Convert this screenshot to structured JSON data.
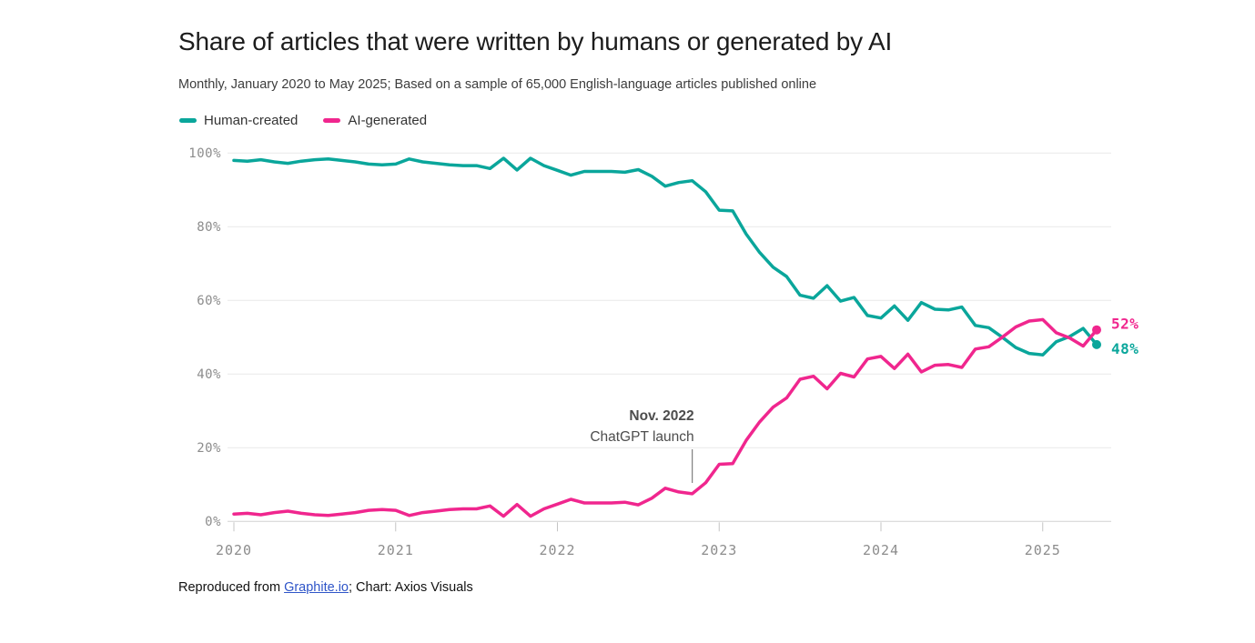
{
  "header": {
    "title": "Share of articles that were written by humans or generated by AI",
    "subtitle": "Monthly, January 2020 to May 2025; Based on a sample of 65,000 English-language articles published online"
  },
  "legend": {
    "items": [
      {
        "label": "Human-created",
        "color": "#0aa69b"
      },
      {
        "label": "AI-generated",
        "color": "#f0268e"
      }
    ]
  },
  "chart_data": {
    "type": "line",
    "title": "Share of articles that were written by humans or generated by AI",
    "x_range": {
      "start": "2020-01",
      "end": "2025-05",
      "interval": "monthly",
      "points": 65
    },
    "x_tick_labels": [
      "2020",
      "2021",
      "2022",
      "2023",
      "2024",
      "2025"
    ],
    "y_tick_labels": [
      "0%",
      "20%",
      "40%",
      "60%",
      "80%",
      "100%"
    ],
    "ylim": [
      0,
      100
    ],
    "grid": "horizontal-only",
    "legend_position": "top-left",
    "series": [
      {
        "name": "Human-created",
        "color": "#0aa69b",
        "end_label": "48%",
        "values": [
          98,
          97.8,
          98.2,
          97.6,
          97.2,
          97.8,
          98.2,
          98.4,
          98,
          97.6,
          97,
          96.8,
          97,
          98.4,
          97.6,
          97.2,
          96.8,
          96.6,
          96.6,
          95.8,
          98.6,
          95.4,
          98.6,
          96.6,
          95.3,
          94,
          95,
          95,
          95,
          94.8,
          95.5,
          93.7,
          91,
          92,
          92.5,
          89.5,
          84.5,
          84.3,
          78,
          73,
          69,
          66.5,
          61.4,
          60.6,
          64,
          59.8,
          60.8,
          55.9,
          55.2,
          58.5,
          54.6,
          59.4,
          57.6,
          57.4,
          58.2,
          53.2,
          52.6,
          50,
          47.2,
          45.6,
          45.2,
          48.8,
          50.2,
          52.4,
          48
        ]
      },
      {
        "name": "AI-generated",
        "color": "#f0268e",
        "end_label": "52%",
        "values": [
          2,
          2.2,
          1.8,
          2.4,
          2.8,
          2.2,
          1.8,
          1.6,
          2,
          2.4,
          3,
          3.2,
          3,
          1.6,
          2.4,
          2.8,
          3.2,
          3.4,
          3.4,
          4.2,
          1.4,
          4.6,
          1.4,
          3.4,
          4.7,
          6,
          5,
          5,
          5,
          5.2,
          4.5,
          6.3,
          9,
          8,
          7.5,
          10.5,
          15.5,
          15.7,
          22,
          27,
          31,
          33.5,
          38.6,
          39.4,
          36,
          40.2,
          39.2,
          44.1,
          44.8,
          41.5,
          45.4,
          40.6,
          42.4,
          42.6,
          41.8,
          46.8,
          47.4,
          50,
          52.8,
          54.4,
          54.8,
          51.2,
          49.8,
          47.6,
          52
        ]
      }
    ],
    "annotation": {
      "line1": "Nov. 2022",
      "line2": "ChatGPT launch",
      "month_index": 34
    }
  },
  "footer": {
    "prefix": "Reproduced from ",
    "link_text": "Graphite.io",
    "suffix": "; Chart: Axios Visuals"
  }
}
